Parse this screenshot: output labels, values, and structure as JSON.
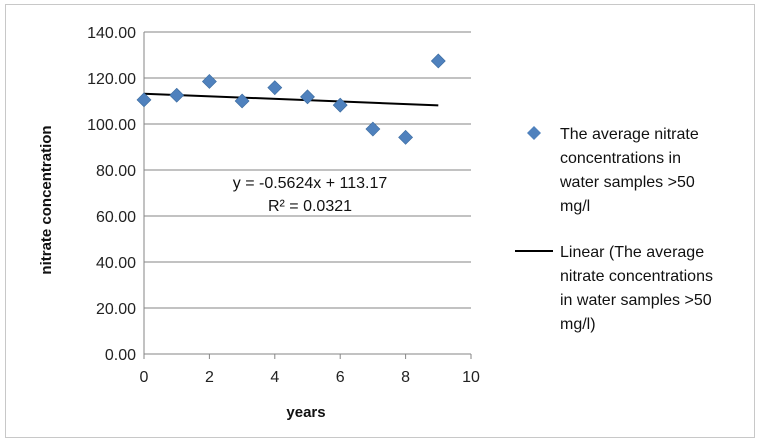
{
  "chart_data": {
    "type": "scatter",
    "xlabel": "years",
    "ylabel": "nitrate concentration",
    "xlim": [
      0,
      10
    ],
    "ylim": [
      0,
      140
    ],
    "x_ticks": [
      "0",
      "2",
      "4",
      "6",
      "8",
      "10"
    ],
    "y_ticks": [
      "0.00",
      "20.00",
      "40.00",
      "60.00",
      "80.00",
      "100.00",
      "120.00",
      "140.00"
    ],
    "grid": "horizontal",
    "legend_position": "right",
    "series": [
      {
        "name": "The average nitrate concentrations in water samples >50 mg/l",
        "legend_lines": [
          "The average nitrate",
          "concentrations in",
          "water samples >50",
          "mg/l"
        ],
        "color": "#4f81bd",
        "marker": "diamond",
        "points": [
          {
            "x": 0,
            "y": 110.5
          },
          {
            "x": 1,
            "y": 112.5
          },
          {
            "x": 2,
            "y": 118.5
          },
          {
            "x": 3,
            "y": 110.0
          },
          {
            "x": 4,
            "y": 115.8
          },
          {
            "x": 5,
            "y": 111.8
          },
          {
            "x": 6,
            "y": 108.2
          },
          {
            "x": 7,
            "y": 97.8
          },
          {
            "x": 8,
            "y": 94.2
          },
          {
            "x": 9,
            "y": 127.4
          }
        ]
      }
    ],
    "trendline": {
      "name": "Linear (The average nitrate concentrations in water samples >50 mg/l)",
      "legend_lines": [
        "Linear (The average",
        "nitrate concentrations",
        "in water samples >50",
        "mg/l)"
      ],
      "color": "#000000",
      "slope": -0.5624,
      "intercept": 113.17,
      "x_range": [
        0,
        9
      ],
      "equation": "y = -0.5624x + 113.17",
      "r_squared": "R² = 0.0321"
    }
  }
}
